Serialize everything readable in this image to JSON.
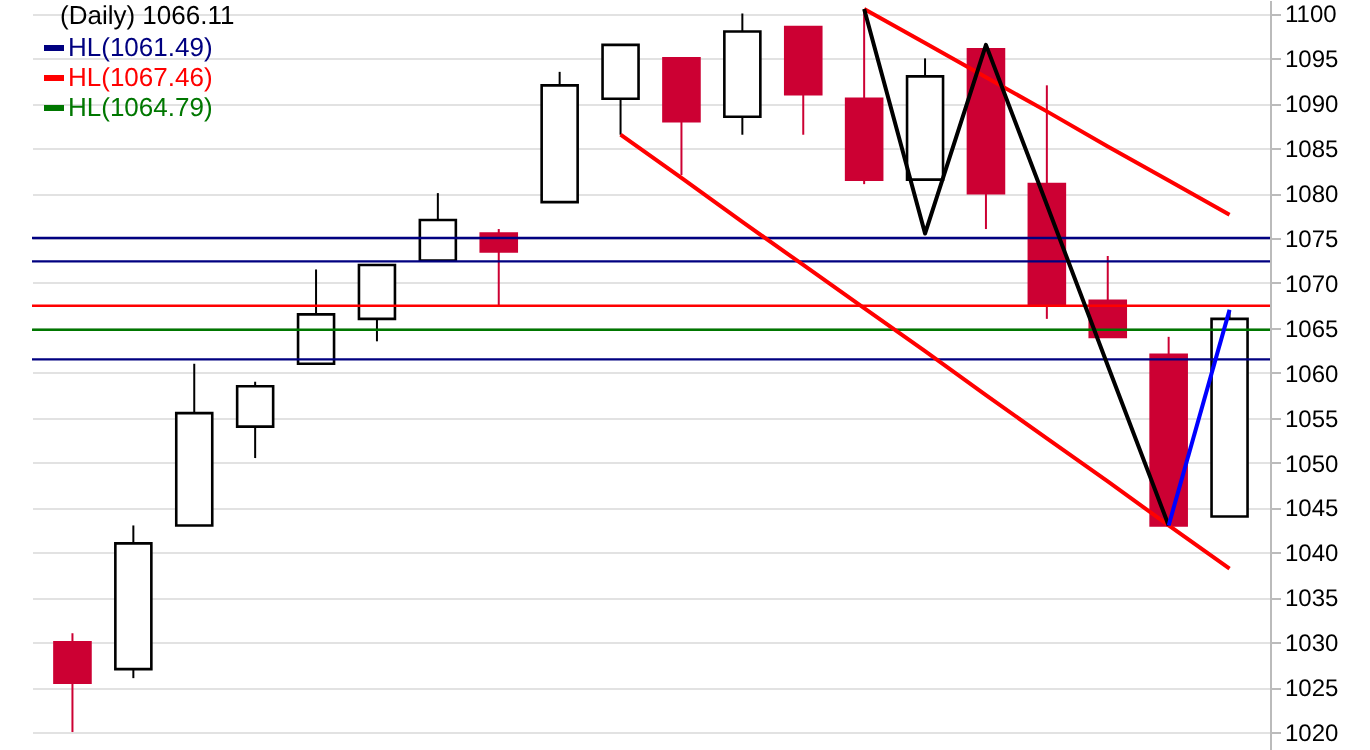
{
  "chart_data": {
    "type": "candlestick",
    "title": "(Daily) 1066.11",
    "categories": [
      null,
      null,
      null,
      null,
      null,
      null,
      null,
      null,
      null,
      null,
      null,
      null,
      null,
      null,
      null,
      null,
      null,
      null,
      null,
      null
    ],
    "ohlc": [
      [
        1030,
        1031,
        1020,
        1025.5
      ],
      [
        1027,
        1043,
        1026,
        1041
      ],
      [
        1043,
        1061,
        1043,
        1055.5
      ],
      [
        1054,
        1059,
        1050.5,
        1058.5
      ],
      [
        1061,
        1071.5,
        1061,
        1066.5
      ],
      [
        1066,
        1072,
        1063.5,
        1072
      ],
      [
        1072.5,
        1080,
        1072.5,
        1077
      ],
      [
        1075.5,
        1076,
        1067.5,
        1073.5
      ],
      [
        1079,
        1093.5,
        1079,
        1092
      ],
      [
        1090.5,
        1096.5,
        1086.5,
        1096.5
      ],
      [
        1095,
        1095,
        1082,
        1088
      ],
      [
        1088.5,
        1100,
        1086.5,
        1098
      ],
      [
        1098.5,
        1098.5,
        1086.5,
        1091
      ],
      [
        1090.5,
        1100.5,
        1081,
        1081.5
      ],
      [
        1081.5,
        1095,
        1081.5,
        1093
      ],
      [
        1096,
        1096,
        1076,
        1080
      ],
      [
        1081,
        1092,
        1066,
        1067.5
      ],
      [
        1068,
        1073,
        1064,
        1064
      ],
      [
        1062,
        1064,
        1043,
        1043
      ],
      [
        1044,
        1067,
        1044,
        1066
      ]
    ],
    "colors": [
      "#cc0033",
      "#ffffff",
      "#ffffff",
      "#ffffff",
      "#ffffff",
      "#ffffff",
      "#ffffff",
      "#cc0033",
      "#ffffff",
      "#ffffff",
      "#cc0033",
      "#ffffff",
      "#cc0033",
      "#cc0033",
      "#ffffff",
      "#cc0033",
      "#cc0033",
      "#cc0033",
      "#cc0033",
      "#ffffff"
    ],
    "series": [
      {
        "type": "line",
        "color": "#ff0000",
        "values": [
          null,
          null,
          null,
          null,
          null,
          null,
          null,
          null,
          null,
          null,
          null,
          null,
          null,
          1100.5,
          1096.7,
          1092.9,
          1089.1,
          1085.2,
          1081.4,
          1077.6
        ]
      },
      {
        "type": "line",
        "color": "#ff0000",
        "values": [
          null,
          null,
          null,
          null,
          null,
          null,
          null,
          null,
          null,
          1086.5,
          1081.7,
          1076.8,
          1072.0,
          1067.2,
          1062.4,
          1057.5,
          1052.7,
          1047.9,
          1043.0,
          1038.2
        ]
      },
      {
        "type": "line",
        "color": "#000000",
        "values": [
          null,
          null,
          null,
          null,
          null,
          null,
          null,
          null,
          null,
          null,
          null,
          null,
          null,
          1100.5,
          1075.5,
          1096.5,
          1078.7,
          1060.8,
          1043,
          null
        ]
      },
      {
        "type": "line",
        "color": "#0000ff",
        "values": [
          null,
          null,
          null,
          null,
          null,
          null,
          null,
          null,
          null,
          null,
          null,
          null,
          null,
          null,
          null,
          null,
          null,
          null,
          1043,
          1067
        ]
      }
    ],
    "ref_lines": [
      {
        "axis": "y",
        "value": 1061.49,
        "label": "HL(1061.49)",
        "color": "#000080"
      },
      {
        "axis": "y",
        "value": 1067.46,
        "label": "HL(1067.46)",
        "color": "#ff0000"
      },
      {
        "axis": "y",
        "value": 1064.79,
        "label": "HL(1064.79)",
        "color": "#007700"
      },
      {
        "axis": "y",
        "value": 1075,
        "color": "#000080"
      },
      {
        "axis": "y",
        "value": 1072.4,
        "color": "#000080"
      }
    ],
    "ylim": [
      1018,
      1101.5
    ],
    "yticks": [
      1020,
      1025,
      1030,
      1035,
      1040,
      1045,
      1050,
      1055,
      1060,
      1065,
      1070,
      1075,
      1080,
      1085,
      1090,
      1095,
      1100
    ],
    "grid": "y",
    "legend": "top left"
  }
}
